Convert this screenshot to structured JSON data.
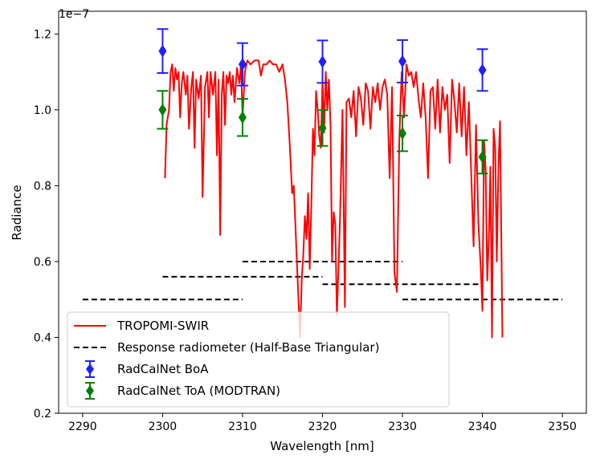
{
  "chart_data": {
    "type": "line",
    "title": "",
    "xlabel": "Wavelength [nm]",
    "ylabel": "Radiance",
    "offset_label": "1e−7",
    "xlim": [
      2287,
      2353
    ],
    "ylim": [
      0.2,
      1.26
    ],
    "x_ticks": [
      2290,
      2300,
      2310,
      2320,
      2330,
      2340,
      2350
    ],
    "y_ticks": [
      0.2,
      0.4,
      0.6,
      0.8,
      1.0,
      1.2
    ],
    "x_tick_labels": [
      "2290",
      "2300",
      "2310",
      "2320",
      "2330",
      "2340",
      "2350"
    ],
    "y_tick_labels": [
      "0.2",
      "0.4",
      "0.6",
      "0.8",
      "1.0",
      "1.2"
    ],
    "grid": false,
    "legend_position": "lower-left",
    "tropomi": {
      "name": "TROPOMI-SWIR",
      "color": "#ff0000",
      "x": [
        2300.3,
        2300.5,
        2300.8,
        2301.0,
        2301.2,
        2301.4,
        2301.6,
        2301.8,
        2302.0,
        2302.2,
        2302.4,
        2302.6,
        2302.9,
        2303.1,
        2303.3,
        2303.6,
        2303.8,
        2304.0,
        2304.2,
        2304.5,
        2304.8,
        2305.0,
        2305.3,
        2305.6,
        2305.8,
        2306.0,
        2306.3,
        2306.6,
        2306.8,
        2307.0,
        2307.2,
        2307.4,
        2307.6,
        2307.8,
        2308.0,
        2308.2,
        2308.4,
        2308.6,
        2308.8,
        2309.0,
        2309.3,
        2309.6,
        2309.8,
        2310.0,
        2310.3,
        2310.6,
        2311.0,
        2311.5,
        2312.0,
        2312.3,
        2312.6,
        2313.0,
        2313.4,
        2313.8,
        2314.2,
        2314.6,
        2315.0,
        2315.3,
        2315.6,
        2315.9,
        2316.2,
        2316.4,
        2316.6,
        2316.8,
        2317.0,
        2317.2,
        2317.4,
        2317.6,
        2317.8,
        2318.0,
        2318.2,
        2318.4,
        2318.6,
        2318.8,
        2319.0,
        2319.2,
        2319.4,
        2319.6,
        2319.8,
        2320.0,
        2320.2,
        2320.4,
        2320.6,
        2320.8,
        2321.0,
        2321.2,
        2321.4,
        2321.6,
        2321.8,
        2322.0,
        2322.2,
        2322.5,
        2322.8,
        2323.0,
        2323.3,
        2323.6,
        2323.9,
        2324.2,
        2324.5,
        2324.8,
        2325.1,
        2325.4,
        2325.7,
        2326.0,
        2326.3,
        2326.6,
        2326.9,
        2327.2,
        2327.5,
        2327.8,
        2328.1,
        2328.4,
        2328.7,
        2329.0,
        2329.3,
        2329.6,
        2329.9,
        2330.2,
        2330.5,
        2330.8,
        2331.1,
        2331.4,
        2331.7,
        2332.0,
        2332.3,
        2332.6,
        2332.9,
        2333.2,
        2333.5,
        2333.8,
        2334.1,
        2334.4,
        2334.7,
        2335.0,
        2335.3,
        2335.6,
        2335.9,
        2336.2,
        2336.5,
        2336.8,
        2337.1,
        2337.4,
        2337.7,
        2338.0,
        2338.3,
        2338.6,
        2338.9,
        2339.2,
        2339.5,
        2339.8,
        2340.0,
        2340.2,
        2340.4,
        2340.6,
        2340.8,
        2341.0,
        2341.2,
        2341.4,
        2341.6,
        2341.8,
        2342.0,
        2342.2,
        2342.5
      ],
      "y": [
        0.82,
        0.96,
        1.0,
        1.1,
        1.12,
        1.05,
        1.11,
        1.08,
        1.1,
        0.98,
        1.07,
        1.1,
        1.04,
        1.09,
        0.95,
        1.06,
        1.1,
        0.9,
        1.08,
        1.03,
        1.09,
        0.77,
        1.06,
        1.1,
        0.98,
        1.1,
        1.04,
        1.1,
        0.88,
        1.08,
        0.67,
        1.04,
        1.1,
        0.96,
        1.09,
        1.07,
        1.1,
        1.04,
        1.09,
        1.02,
        1.11,
        1.07,
        1.12,
        0.98,
        1.1,
        1.13,
        1.12,
        1.13,
        1.13,
        1.09,
        1.12,
        1.12,
        1.13,
        1.12,
        1.12,
        1.1,
        1.12,
        1.08,
        1.02,
        0.91,
        0.78,
        0.8,
        0.7,
        0.6,
        0.5,
        0.4,
        0.55,
        0.62,
        0.72,
        0.66,
        0.78,
        0.58,
        0.75,
        0.95,
        0.88,
        1.05,
        1.0,
        0.93,
        0.9,
        1.08,
        0.94,
        1.1,
        1.0,
        1.08,
        0.96,
        0.6,
        0.73,
        0.7,
        0.46,
        0.58,
        0.72,
        1.0,
        0.48,
        1.02,
        1.03,
        0.98,
        1.05,
        0.93,
        1.06,
        1.03,
        0.96,
        1.07,
        1.05,
        0.95,
        1.06,
        1.02,
        1.07,
        1.0,
        1.06,
        1.08,
        1.04,
        0.82,
        1.06,
        0.57,
        0.52,
        0.92,
        1.1,
        0.98,
        1.12,
        1.09,
        1.1,
        1.06,
        1.1,
        1.03,
        0.98,
        1.07,
        0.98,
        0.82,
        1.05,
        1.06,
        0.95,
        1.08,
        0.94,
        1.06,
        1.0,
        1.04,
        0.86,
        1.08,
        1.02,
        0.94,
        1.07,
        0.93,
        1.06,
        0.88,
        1.02,
        0.83,
        0.64,
        0.96,
        0.7,
        0.58,
        0.47,
        0.92,
        0.84,
        0.55,
        0.66,
        0.85,
        0.4,
        0.95,
        0.9,
        0.6,
        0.85,
        0.97,
        0.4
      ]
    },
    "response_segments": {
      "name": "Response radiometer (Half-Base Triangular)",
      "color": "#000000",
      "segments": [
        {
          "x": [
            2290,
            2310
          ],
          "y": 0.5
        },
        {
          "x": [
            2300,
            2320
          ],
          "y": 0.56
        },
        {
          "x": [
            2310,
            2330
          ],
          "y": 0.6
        },
        {
          "x": [
            2320,
            2340
          ],
          "y": 0.54
        },
        {
          "x": [
            2330,
            2350
          ],
          "y": 0.5
        }
      ]
    },
    "boa": {
      "name": "RadCalNet BoA",
      "color": "#1f1fff",
      "x": [
        2300,
        2310,
        2320,
        2330,
        2340
      ],
      "y": [
        1.155,
        1.12,
        1.127,
        1.128,
        1.105
      ],
      "err": [
        0.058,
        0.056,
        0.056,
        0.056,
        0.055
      ]
    },
    "toa": {
      "name": "RadCalNet ToA (MODTRAN)",
      "color": "#008000",
      "x": [
        2300,
        2310,
        2320,
        2330,
        2340
      ],
      "y": [
        1.0,
        0.98,
        0.952,
        0.938,
        0.876
      ],
      "err": [
        0.05,
        0.049,
        0.047,
        0.047,
        0.044
      ]
    }
  }
}
